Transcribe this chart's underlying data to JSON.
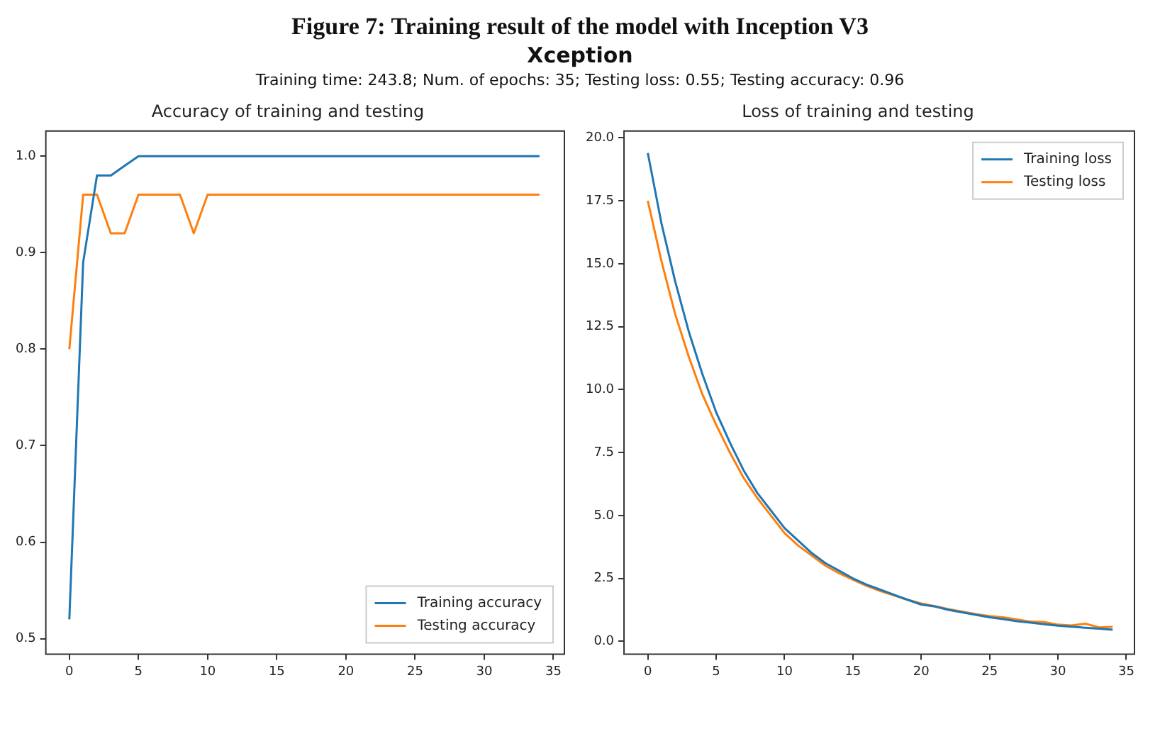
{
  "chart_data": [
    {
      "type": "line",
      "title": "Accuracy of training and testing",
      "annotations": [
        "Figure 7: Training result of the model with Inception V3",
        "Xception",
        "Training time: 243.8; Num. of epochs: 35; Testing loss: 0.55; Testing accuracy: 0.96"
      ],
      "x": [
        0,
        1,
        2,
        3,
        4,
        5,
        6,
        7,
        8,
        9,
        10,
        11,
        12,
        13,
        14,
        15,
        16,
        17,
        18,
        19,
        20,
        21,
        22,
        23,
        24,
        25,
        26,
        27,
        28,
        29,
        30,
        31,
        32,
        33,
        34
      ],
      "series": [
        {
          "name": "Training accuracy",
          "color": "#1f77b4",
          "values": [
            0.52,
            0.89,
            0.98,
            0.98,
            0.99,
            1.0,
            1.0,
            1.0,
            1.0,
            1.0,
            1.0,
            1.0,
            1.0,
            1.0,
            1.0,
            1.0,
            1.0,
            1.0,
            1.0,
            1.0,
            1.0,
            1.0,
            1.0,
            1.0,
            1.0,
            1.0,
            1.0,
            1.0,
            1.0,
            1.0,
            1.0,
            1.0,
            1.0,
            1.0,
            1.0
          ]
        },
        {
          "name": "Testing accuracy",
          "color": "#ff7f0e",
          "values": [
            0.8,
            0.96,
            0.96,
            0.92,
            0.92,
            0.96,
            0.96,
            0.96,
            0.96,
            0.92,
            0.96,
            0.96,
            0.96,
            0.96,
            0.96,
            0.96,
            0.96,
            0.96,
            0.96,
            0.96,
            0.96,
            0.96,
            0.96,
            0.96,
            0.96,
            0.96,
            0.96,
            0.96,
            0.96,
            0.96,
            0.96,
            0.96,
            0.96,
            0.96,
            0.96
          ]
        }
      ],
      "xlim": [
        -1.7,
        35.8
      ],
      "xticks": [
        0,
        5,
        10,
        15,
        20,
        25,
        30,
        35
      ],
      "ylim": [
        0.484,
        1.026
      ],
      "yticks": [
        {
          "value": 0.5,
          "label": "0.5"
        },
        {
          "value": 0.6,
          "label": "0.6"
        },
        {
          "value": 0.7,
          "label": "0.7"
        },
        {
          "value": 0.8,
          "label": "0.8"
        },
        {
          "value": 0.9,
          "label": "0.9"
        },
        {
          "value": 1.0,
          "label": "1.0"
        }
      ],
      "grid": false,
      "legend": "bottom right"
    },
    {
      "type": "line",
      "title": "Loss of training and testing",
      "x": [
        0,
        1,
        2,
        3,
        4,
        5,
        6,
        7,
        8,
        9,
        10,
        11,
        12,
        13,
        14,
        15,
        16,
        17,
        18,
        19,
        20,
        21,
        22,
        23,
        24,
        25,
        26,
        27,
        28,
        29,
        30,
        31,
        32,
        33,
        34
      ],
      "series": [
        {
          "name": "Training loss",
          "color": "#1f77b4",
          "values": [
            19.4,
            16.6,
            14.3,
            12.3,
            10.6,
            9.1,
            7.9,
            6.8,
            5.9,
            5.2,
            4.5,
            4.0,
            3.5,
            3.1,
            2.8,
            2.5,
            2.25,
            2.05,
            1.85,
            1.65,
            1.46,
            1.38,
            1.25,
            1.15,
            1.05,
            0.95,
            0.88,
            0.8,
            0.74,
            0.68,
            0.62,
            0.58,
            0.54,
            0.5,
            0.46
          ]
        },
        {
          "name": "Testing loss",
          "color": "#ff7f0e",
          "values": [
            17.5,
            15.1,
            13.0,
            11.3,
            9.8,
            8.6,
            7.5,
            6.5,
            5.7,
            5.0,
            4.3,
            3.8,
            3.4,
            3.0,
            2.7,
            2.45,
            2.2,
            2.0,
            1.82,
            1.65,
            1.5,
            1.4,
            1.28,
            1.18,
            1.08,
            1.0,
            0.95,
            0.87,
            0.78,
            0.76,
            0.66,
            0.63,
            0.7,
            0.55,
            0.57
          ]
        }
      ],
      "xlim": [
        -1.74,
        35.6
      ],
      "xticks": [
        0,
        5,
        10,
        15,
        20,
        25,
        30,
        35
      ],
      "ylim": [
        -0.51,
        20.27
      ],
      "yticks": [
        {
          "value": 0,
          "label": "0.0"
        },
        {
          "value": 2.5,
          "label": "2.5"
        },
        {
          "value": 5,
          "label": "5.0"
        },
        {
          "value": 7.5,
          "label": "7.5"
        },
        {
          "value": 10,
          "label": "10.0"
        },
        {
          "value": 12.5,
          "label": "12.5"
        },
        {
          "value": 15,
          "label": "15.0"
        },
        {
          "value": 17.5,
          "label": "17.5"
        },
        {
          "value": 20,
          "label": "20.0"
        }
      ],
      "grid": false,
      "legend": "top right"
    }
  ]
}
